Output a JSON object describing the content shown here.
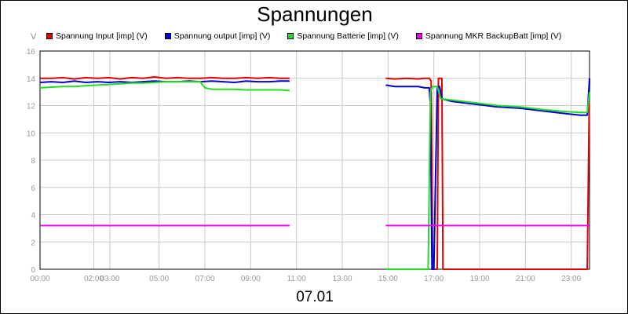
{
  "chart_data": {
    "type": "line",
    "title": "Spannungen",
    "ylabel": "V",
    "xlabel": "07.01",
    "ylim": [
      0,
      16
    ],
    "xlim": [
      0,
      24
    ],
    "yticks": [
      "0",
      "2",
      "4",
      "6",
      "8",
      "10",
      "12",
      "14",
      "16"
    ],
    "xticks": [
      {
        "x": 0,
        "label": "00:00"
      },
      {
        "x": 2.35,
        "label": "02:00"
      },
      {
        "x": 3.05,
        "label": "03:00"
      },
      {
        "x": 5.2,
        "label": "05:00"
      },
      {
        "x": 7.2,
        "label": "07:00"
      },
      {
        "x": 9.2,
        "label": "09:00"
      },
      {
        "x": 11.2,
        "label": "11:00"
      },
      {
        "x": 13.2,
        "label": "13:00"
      },
      {
        "x": 15.2,
        "label": "15:00"
      },
      {
        "x": 17.2,
        "label": "17:00"
      },
      {
        "x": 19.2,
        "label": "19:00"
      },
      {
        "x": 21.2,
        "label": "21:00"
      },
      {
        "x": 23.2,
        "label": "23:00"
      }
    ],
    "grid": true,
    "legend_position": "top",
    "series": [
      {
        "name": "Spannung Input [imp] (V)",
        "color": "#e00000",
        "segments": [
          [
            [
              0,
              14.0
            ],
            [
              0.5,
              14.0
            ],
            [
              1,
              14.05
            ],
            [
              1.5,
              13.95
            ],
            [
              2,
              14.05
            ],
            [
              2.5,
              14.0
            ],
            [
              3,
              14.05
            ],
            [
              3.5,
              13.95
            ],
            [
              4,
              14.05
            ],
            [
              4.5,
              14.0
            ],
            [
              5,
              14.1
            ],
            [
              5.5,
              14.0
            ],
            [
              6,
              14.05
            ],
            [
              6.5,
              14.0
            ],
            [
              7,
              14.0
            ],
            [
              7.5,
              14.05
            ],
            [
              8,
              14.0
            ],
            [
              8.5,
              14.0
            ],
            [
              9,
              14.05
            ],
            [
              9.5,
              14.0
            ],
            [
              10,
              14.05
            ],
            [
              10.5,
              14.0
            ],
            [
              10.9,
              14.0
            ]
          ],
          [
            [
              15.1,
              14.0
            ],
            [
              15.5,
              13.95
            ],
            [
              16,
              14.0
            ],
            [
              16.5,
              13.95
            ],
            [
              16.8,
              14.0
            ],
            [
              17.0,
              14.0
            ],
            [
              17.08,
              13.8
            ],
            [
              17.15,
              0.0
            ],
            [
              17.35,
              0.0
            ],
            [
              17.4,
              14.0
            ],
            [
              17.55,
              14.0
            ],
            [
              17.6,
              0.0
            ],
            [
              23.9,
              0.0
            ],
            [
              24,
              14.0
            ]
          ]
        ]
      },
      {
        "name": "Spannung output [imp] (V)",
        "color": "#0000d0",
        "segments": [
          [
            [
              0,
              13.7
            ],
            [
              0.5,
              13.75
            ],
            [
              1,
              13.7
            ],
            [
              1.5,
              13.8
            ],
            [
              2,
              13.7
            ],
            [
              2.5,
              13.75
            ],
            [
              3,
              13.7
            ],
            [
              3.5,
              13.75
            ],
            [
              4,
              13.7
            ],
            [
              4.5,
              13.75
            ],
            [
              5,
              13.8
            ],
            [
              5.5,
              13.75
            ],
            [
              6,
              13.75
            ],
            [
              6.5,
              13.8
            ],
            [
              7,
              13.75
            ],
            [
              7.5,
              13.8
            ],
            [
              8,
              13.75
            ],
            [
              8.5,
              13.7
            ],
            [
              9,
              13.8
            ],
            [
              9.5,
              13.75
            ],
            [
              10,
              13.75
            ],
            [
              10.5,
              13.8
            ],
            [
              10.9,
              13.8
            ]
          ],
          [
            [
              15.1,
              13.5
            ],
            [
              15.5,
              13.4
            ],
            [
              16,
              13.4
            ],
            [
              16.5,
              13.4
            ],
            [
              16.8,
              13.3
            ],
            [
              17.0,
              13.3
            ],
            [
              17.05,
              12.0
            ],
            [
              17.12,
              0.0
            ],
            [
              17.2,
              0.0
            ],
            [
              17.35,
              13.4
            ],
            [
              17.45,
              13.4
            ],
            [
              17.55,
              12.5
            ],
            [
              18,
              12.3
            ],
            [
              19,
              12.1
            ],
            [
              20,
              11.9
            ],
            [
              21,
              11.8
            ],
            [
              22,
              11.6
            ],
            [
              23,
              11.4
            ],
            [
              23.6,
              11.3
            ],
            [
              23.9,
              11.3
            ],
            [
              24,
              14.0
            ]
          ]
        ]
      },
      {
        "name": "Spannung Batterie [imp] (V)",
        "color": "#22dd22",
        "segments": [
          [
            [
              0,
              13.3
            ],
            [
              0.5,
              13.35
            ],
            [
              1,
              13.4
            ],
            [
              1.5,
              13.4
            ],
            [
              2,
              13.45
            ],
            [
              2.5,
              13.5
            ],
            [
              3,
              13.55
            ],
            [
              3.5,
              13.6
            ],
            [
              4,
              13.65
            ],
            [
              4.5,
              13.65
            ],
            [
              5,
              13.7
            ],
            [
              5.5,
              13.75
            ],
            [
              6,
              13.75
            ],
            [
              6.5,
              13.75
            ],
            [
              7,
              13.75
            ],
            [
              7.1,
              13.5
            ],
            [
              7.2,
              13.3
            ],
            [
              7.5,
              13.2
            ],
            [
              8,
              13.2
            ],
            [
              8.5,
              13.2
            ],
            [
              9,
              13.15
            ],
            [
              9.5,
              13.15
            ],
            [
              10,
              13.15
            ],
            [
              10.5,
              13.15
            ],
            [
              10.9,
              13.1
            ]
          ],
          [
            [
              15.1,
              0.0
            ],
            [
              16.8,
              0.0
            ],
            [
              16.95,
              0.0
            ],
            [
              17.05,
              13.0
            ],
            [
              17.15,
              13.4
            ],
            [
              17.25,
              13.4
            ],
            [
              17.35,
              13.4
            ],
            [
              17.5,
              12.5
            ],
            [
              18,
              12.4
            ],
            [
              19,
              12.2
            ],
            [
              20,
              12.0
            ],
            [
              21,
              11.9
            ],
            [
              22,
              11.7
            ],
            [
              23,
              11.55
            ],
            [
              23.6,
              11.5
            ],
            [
              23.9,
              11.5
            ],
            [
              24,
              13.0
            ]
          ]
        ]
      },
      {
        "name": "Spannung MKR BackupBatt [imp] (V)",
        "color": "#ee00ee",
        "segments": [
          [
            [
              0,
              3.2
            ],
            [
              10.9,
              3.2
            ]
          ],
          [
            [
              15.1,
              3.2
            ],
            [
              24,
              3.2
            ]
          ]
        ]
      }
    ]
  }
}
